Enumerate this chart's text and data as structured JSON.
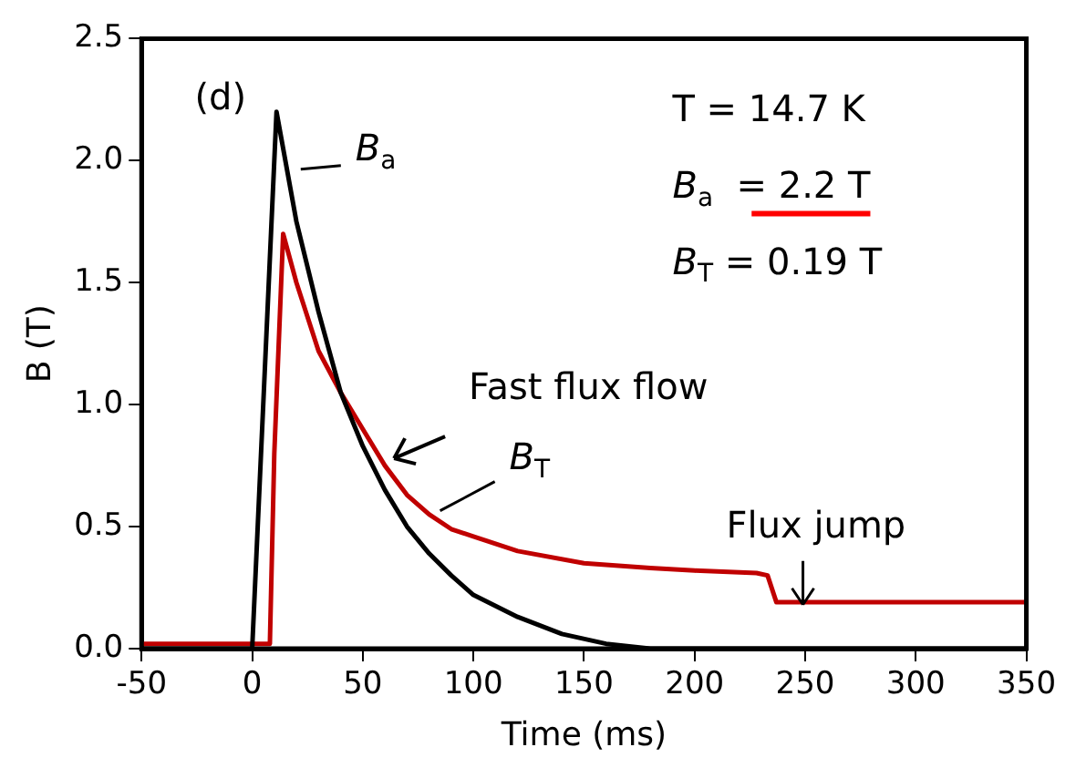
{
  "chart_data": {
    "type": "line",
    "xlabel": "Time (ms)",
    "ylabel": "B (T)",
    "xlim": [
      -50,
      350
    ],
    "xticks": [
      -50,
      0,
      50,
      100,
      150,
      200,
      250,
      300,
      350
    ],
    "ylim": [
      0,
      2.5
    ],
    "yticks": [
      {
        "value": 0,
        "label": "0.0"
      },
      {
        "value": 0.5,
        "label": "0.5"
      },
      {
        "value": 1,
        "label": "1.0"
      },
      {
        "value": 1.5,
        "label": "1.5"
      },
      {
        "value": 2,
        "label": "2.0"
      },
      {
        "value": 2.5,
        "label": "2.5"
      }
    ],
    "grid": false,
    "legend": false,
    "marker": "none",
    "line_style": "solid",
    "series": [
      {
        "color": "#000000",
        "x": [
          -50,
          0,
          11,
          20,
          30,
          40,
          50,
          60,
          70,
          80,
          90,
          100,
          120,
          140,
          160,
          180,
          250,
          350
        ],
        "values": [
          0,
          0,
          2.2,
          1.75,
          1.38,
          1.05,
          0.83,
          0.65,
          0.5,
          0.39,
          0.3,
          0.22,
          0.13,
          0.06,
          0.02,
          0,
          0,
          0
        ]
      },
      {
        "color": "#c00000",
        "x": [
          -50,
          -20,
          8,
          10,
          14,
          20,
          30,
          40,
          50,
          60,
          70,
          80,
          90,
          100,
          120,
          150,
          180,
          200,
          228,
          233,
          237,
          250,
          300,
          350
        ],
        "values": [
          0.02,
          0.02,
          0.02,
          0.8,
          1.7,
          1.5,
          1.22,
          1.05,
          0.9,
          0.75,
          0.63,
          0.55,
          0.49,
          0.46,
          0.4,
          0.35,
          0.33,
          0.32,
          0.31,
          0.3,
          0.19,
          0.19,
          0.19,
          0.19
        ]
      }
    ],
    "annotations": [
      "(d)",
      {
        "text": "B$_{a}$",
        "x": 17,
        "y": 1.95
      },
      "T = 14.7 K",
      "B$_{a}$  = 2.2 T",
      "B$_{T}$ = 0.19 T",
      {
        "text": "Fast flux flow",
        "x": 60,
        "y": 0.75
      },
      {
        "text": "B$_{T}$",
        "x": 80,
        "y": 0.55
      },
      {
        "text": "Flux jump",
        "x": 249,
        "y": 0.18
      }
    ]
  }
}
